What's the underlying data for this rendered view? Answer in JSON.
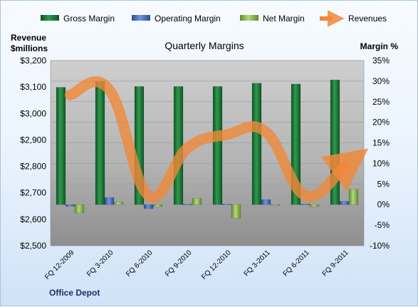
{
  "chart_data": {
    "type": "bar",
    "title": "Quarterly Margins",
    "footer": "Office Depot",
    "left_axis_title": [
      "Revenue",
      "$millions"
    ],
    "right_axis_title": "Margin %",
    "categories": [
      "FQ 12-2009",
      "FQ 3-2010",
      "FQ 6-2010",
      "FQ 9-2010",
      "FQ 12-2010",
      "FQ 3-2011",
      "FQ 6-2011",
      "FQ 9-2011"
    ],
    "left_axis": {
      "min": 2500,
      "max": 3200,
      "step": 100,
      "tick_labels": [
        "$2,500",
        "$2,600",
        "$2,700",
        "$2,800",
        "$2,900",
        "$3,000",
        "$3,100",
        "$3,200"
      ]
    },
    "right_axis": {
      "min": -10,
      "max": 35,
      "step": 5,
      "tick_labels": [
        "-10%",
        "-5%",
        "0%",
        "5%",
        "10%",
        "15%",
        "20%",
        "25%",
        "30%",
        "35%"
      ]
    },
    "series": [
      {
        "name": "Gross Margin",
        "axis": "right",
        "type": "bar",
        "color": "#1e7a3a",
        "values": [
          28.5,
          30.0,
          28.7,
          28.7,
          28.7,
          29.5,
          29.3,
          30.3
        ]
      },
      {
        "name": "Operating Margin",
        "axis": "right",
        "type": "bar",
        "color": "#4a72c4",
        "values": [
          -0.4,
          1.7,
          -1.0,
          0.1,
          0.1,
          1.2,
          0.1,
          0.8
        ]
      },
      {
        "name": "Net Margin",
        "axis": "right",
        "type": "bar",
        "color": "#8fbf4a",
        "values": [
          -2.0,
          0.6,
          -0.5,
          1.5,
          -3.3,
          0.0,
          -0.5,
          3.7
        ]
      },
      {
        "name": "Revenues",
        "axis": "left",
        "type": "line",
        "color": "#f0883a",
        "values": [
          3070,
          3090,
          2690,
          2870,
          2920,
          2930,
          2690,
          2800
        ]
      }
    ],
    "legend_position": "top",
    "grid": true
  }
}
